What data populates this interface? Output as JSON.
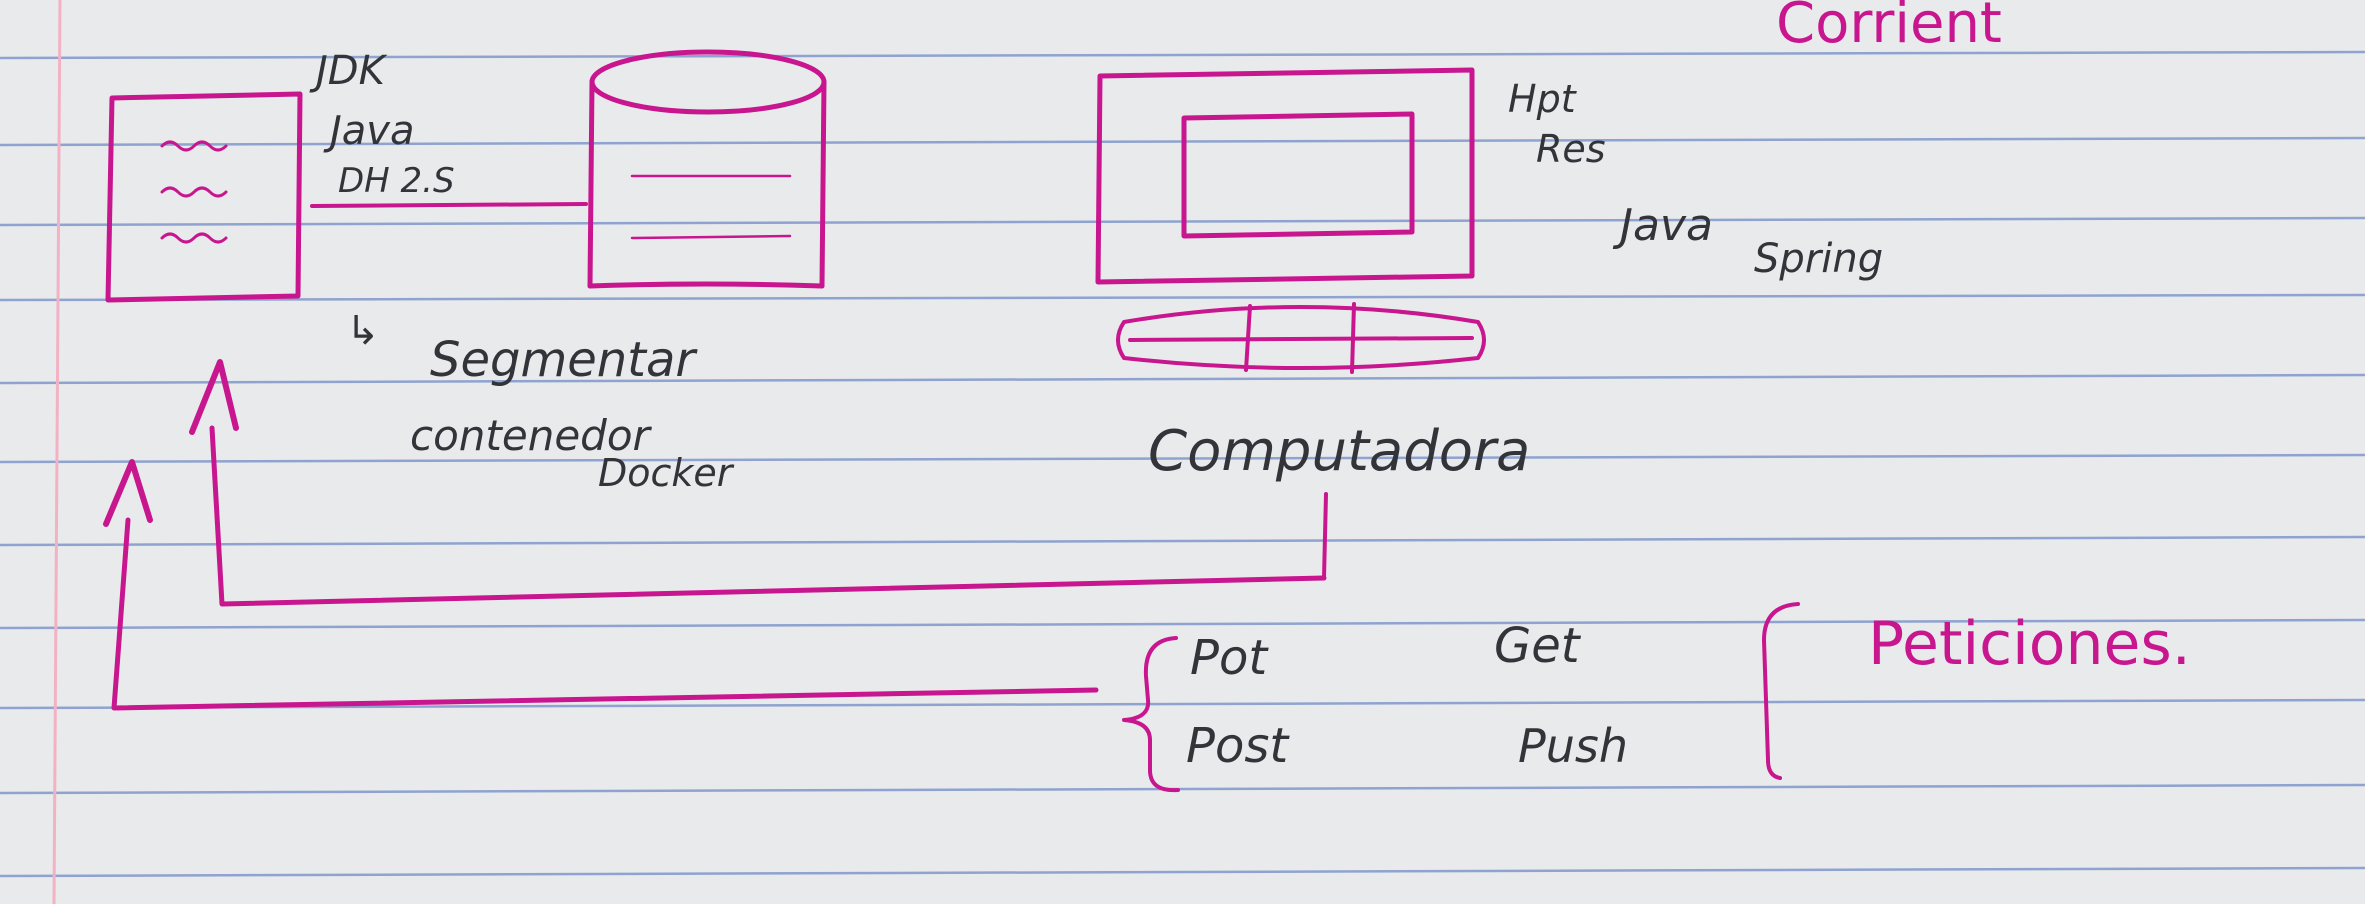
{
  "colors": {
    "paper": "#e9eaec",
    "rule_line": "#8ea3cf",
    "margin_line": "#f2b2c4",
    "ink": "#c8168f",
    "pencil": "#33333a"
  },
  "notes": {
    "corner_label": "Corrient",
    "server_box": {
      "label_jdk": "JDK",
      "label_java": "Java",
      "label_db": "DH 2.S"
    },
    "segmentar_arrow": "↳",
    "segmentar": "Segmentar",
    "contenedor": "contenedor",
    "docker": "Docker",
    "computer": {
      "label": "Computadora",
      "label_http": "Hpt",
      "label_res": "Res",
      "label_java": "Java",
      "label_spring": "Spring"
    },
    "methods": {
      "put": "Pot",
      "post": "Post",
      "get": "Get",
      "push": "Push"
    },
    "peticiones": "Peticiones."
  }
}
